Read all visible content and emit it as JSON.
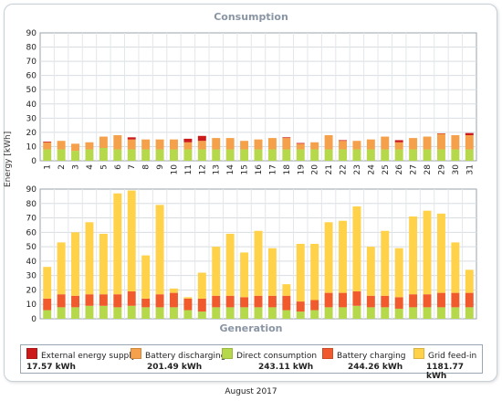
{
  "chart_data": {
    "type": "bar",
    "xlabel": "",
    "ylabel": "Energy [kWh]",
    "month_caption": "August 2017",
    "categories": [
      "1",
      "2",
      "3",
      "4",
      "5",
      "6",
      "7",
      "8",
      "9",
      "10",
      "11",
      "12",
      "13",
      "14",
      "15",
      "16",
      "17",
      "18",
      "19",
      "20",
      "21",
      "22",
      "23",
      "24",
      "25",
      "26",
      "27",
      "28",
      "29",
      "30",
      "31"
    ],
    "ylim": [
      0,
      90
    ],
    "yticks": [
      "0",
      "10",
      "20",
      "30",
      "40",
      "50",
      "60",
      "70",
      "80",
      "90"
    ],
    "grid": true,
    "legend_placement": "bottom",
    "charts": [
      {
        "title": "Consumption",
        "stacked": true,
        "series": [
          {
            "name": "Direct consumption",
            "color": "#b5d94a",
            "values": [
              8,
              8,
              7,
              8,
              9,
              8,
              8,
              8,
              8,
              8,
              8,
              8,
              8,
              8,
              8,
              8,
              8,
              8,
              8,
              8,
              8,
              8,
              8,
              8,
              8,
              8,
              8,
              8,
              8,
              8,
              8
            ]
          },
          {
            "name": "Battery discharging",
            "color": "#f5a04a",
            "values": [
              5,
              6,
              5,
              5,
              8,
              10,
              7,
              7,
              7,
              7,
              5,
              6,
              8,
              8,
              6,
              7,
              8,
              8,
              4,
              5,
              10,
              6,
              6,
              7,
              9,
              5,
              8,
              9,
              11,
              10,
              10
            ]
          },
          {
            "name": "External energy supply",
            "color": "#cc1a1a",
            "values": [
              0.5,
              0,
              0,
              0,
              0,
              0,
              1.5,
              0,
              0,
              0,
              2.5,
              3.5,
              0,
              0,
              0,
              0,
              0,
              0.5,
              0.5,
              0,
              0,
              0.5,
              0,
              0,
              0,
              1.5,
              0,
              0,
              0.3,
              0,
              1.5
            ]
          }
        ]
      },
      {
        "title": "Generation",
        "stacked": true,
        "series": [
          {
            "name": "Direct consumption",
            "color": "#b5d94a",
            "values": [
              6,
              8,
              8,
              9,
              9,
              8,
              9,
              8,
              8,
              8,
              6,
              5,
              8,
              8,
              8,
              8,
              8,
              6,
              5,
              6,
              8,
              8,
              9,
              8,
              8,
              7,
              8,
              8,
              8,
              8,
              8
            ]
          },
          {
            "name": "Battery charging",
            "color": "#f05a2d",
            "values": [
              8,
              9,
              8,
              8,
              8,
              9,
              10,
              6,
              9,
              10,
              8,
              9,
              8,
              8,
              7,
              8,
              8,
              10,
              7,
              7,
              10,
              10,
              10,
              8,
              8,
              8,
              9,
              9,
              10,
              10,
              10
            ]
          },
          {
            "name": "Grid feed-in",
            "color": "#ffd24a",
            "values": [
              22,
              36,
              44,
              50,
              42,
              70,
              70,
              30,
              62,
              3,
              1,
              18,
              34,
              43,
              31,
              45,
              33,
              8,
              40,
              39,
              49,
              50,
              59,
              34,
              45,
              34,
              54,
              58,
              55,
              35,
              16
            ]
          }
        ]
      }
    ]
  },
  "legend": [
    {
      "name": "External energy supply",
      "value": "17.57 kWh",
      "color": "#cc1a1a"
    },
    {
      "name": "Battery discharging",
      "value": "201.49 kWh",
      "color": "#f5a04a"
    },
    {
      "name": "Direct consumption",
      "value": "243.11 kWh",
      "color": "#b5d94a"
    },
    {
      "name": "Battery charging",
      "value": "244.26 kWh",
      "color": "#f05a2d"
    },
    {
      "name": "Grid feed-in",
      "value": "1181.77 kWh",
      "color": "#ffd24a"
    }
  ]
}
